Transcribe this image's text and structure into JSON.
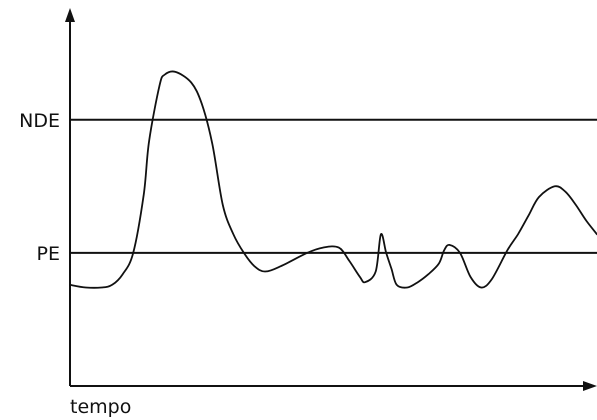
{
  "chart_data": {
    "type": "line",
    "xlabel": "tempo",
    "ylabel": "",
    "grid": false,
    "reference_lines": [
      {
        "label": "NDE",
        "value": 100
      },
      {
        "label": "PE",
        "value": 50
      }
    ],
    "x": [
      0,
      3,
      6,
      8,
      10,
      12,
      14,
      15,
      17,
      18,
      20,
      23,
      25,
      27,
      29,
      31,
      33,
      35,
      37,
      40,
      45,
      48,
      51,
      53,
      55,
      56,
      58,
      59,
      60,
      61,
      62,
      64,
      66,
      68,
      70,
      71,
      72,
      74,
      76,
      78,
      80,
      83,
      85,
      87,
      89,
      92,
      94,
      96,
      98,
      100
    ],
    "series": [
      {
        "values": [
          38,
          37,
          37,
          38,
          42,
          50,
          72,
          92,
          113,
          117,
          118,
          114,
          106,
          91,
          68,
          57,
          50,
          45,
          43,
          45,
          50,
          52,
          52,
          47,
          41,
          39,
          43,
          57,
          50,
          44,
          38,
          37,
          39,
          42,
          46,
          51,
          53,
          50,
          41,
          37,
          40,
          51,
          57,
          64,
          71,
          75,
          73,
          68,
          62,
          57
        ]
      }
    ],
    "xlim": [
      0,
      100
    ],
    "ylim": [
      0,
      145
    ]
  }
}
